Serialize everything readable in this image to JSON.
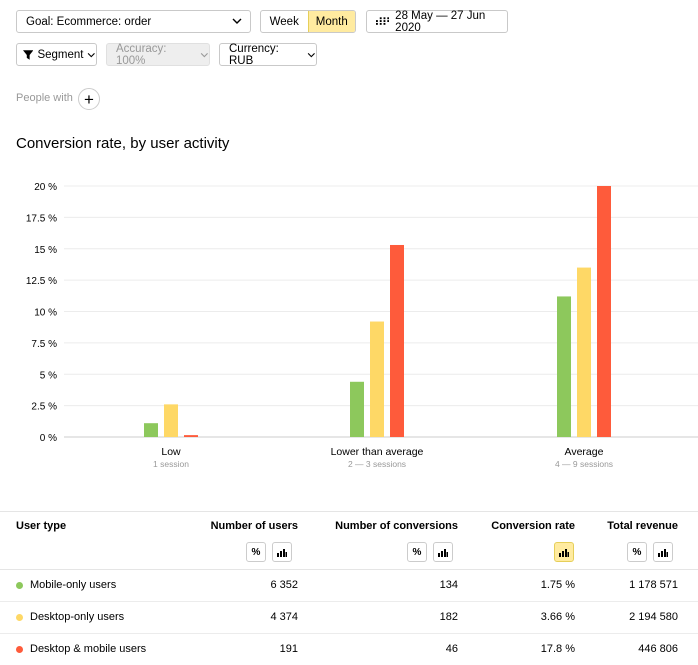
{
  "colors": {
    "mobile": "#8dc85c",
    "desktop": "#fed866",
    "both": "#fe5b3b",
    "active": "#ffeba0"
  },
  "toolbar": {
    "goal": "Goal: Ecommerce: order",
    "week": "Week",
    "month": "Month",
    "dates": "28 May — 27 Jun 2020",
    "segment": "Segment",
    "accuracy": "Accuracy: 100%",
    "currency": "Currency: RUB",
    "people_with": "People with",
    "plus": "+"
  },
  "report_title": "Conversion rate, by user activity",
  "chart_data": {
    "type": "bar",
    "categories": [
      "Low",
      "Lower than average",
      "Average"
    ],
    "subcategories": [
      "1 session",
      "2 — 3 sessions",
      "4 — 9 sessions"
    ],
    "series": [
      {
        "name": "Mobile-only users",
        "values": [
          1.1,
          4.4,
          11.2
        ]
      },
      {
        "name": "Desktop-only users",
        "values": [
          2.6,
          9.2,
          13.5
        ]
      },
      {
        "name": "Desktop & mobile users",
        "values": [
          0.15,
          15.3,
          20.0
        ]
      }
    ],
    "ylim": [
      0,
      20
    ],
    "yticks": [
      "0 %",
      "2.5 %",
      "5 %",
      "7.5 %",
      "10 %",
      "12.5 %",
      "15 %",
      "17.5 %",
      "20 %"
    ],
    "grid": true
  },
  "table": {
    "headers": [
      "User type",
      "Number of users",
      "Number of conversions",
      "Conversion rate",
      "Total revenue"
    ],
    "tool_percent": "%",
    "rows": [
      {
        "name": "Mobile-only users",
        "users": "6 352",
        "conversions": "134",
        "rate": "1.75 %",
        "revenue": "1 178 571"
      },
      {
        "name": "Desktop-only users",
        "users": "4 374",
        "conversions": "182",
        "rate": "3.66 %",
        "revenue": "2 194 580"
      },
      {
        "name": "Desktop & mobile users",
        "users": "191",
        "conversions": "46",
        "rate": "17.8 %",
        "revenue": "446 806"
      }
    ]
  }
}
